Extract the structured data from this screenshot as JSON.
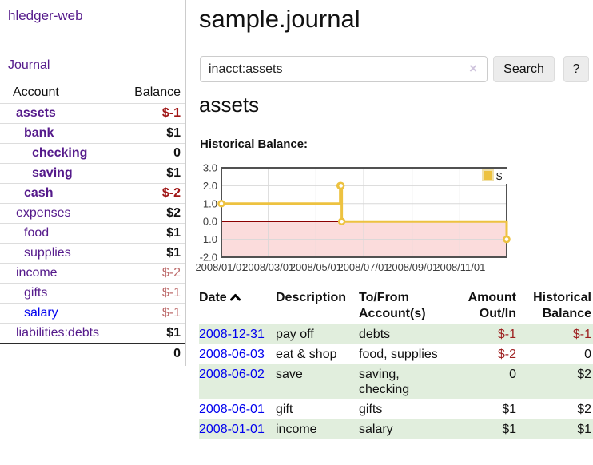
{
  "app": {
    "brand": "hledger-web",
    "nav_journal": "Journal"
  },
  "sidebar": {
    "header": {
      "account": "Account",
      "balance": "Balance"
    },
    "rows": [
      {
        "name": "assets",
        "depth": 1,
        "bold": true,
        "balance": "$-1",
        "neg": "strong"
      },
      {
        "name": "bank",
        "depth": 2,
        "bold": true,
        "balance": "$1"
      },
      {
        "name": "checking",
        "depth": 3,
        "bold": true,
        "balance": "0"
      },
      {
        "name": "saving",
        "depth": 3,
        "bold": true,
        "balance": "$1"
      },
      {
        "name": "cash",
        "depth": 2,
        "bold": true,
        "balance": "$-2",
        "neg": "strong"
      },
      {
        "name": "expenses",
        "depth": 1,
        "bold": false,
        "balance": "$2"
      },
      {
        "name": "food",
        "depth": 2,
        "bold": false,
        "balance": "$1"
      },
      {
        "name": "supplies",
        "depth": 2,
        "bold": false,
        "balance": "$1"
      },
      {
        "name": "income",
        "depth": 1,
        "bold": false,
        "balance": "$-2",
        "neg": "soft"
      },
      {
        "name": "gifts",
        "depth": 2,
        "bold": false,
        "balance": "$-1",
        "neg": "soft"
      },
      {
        "name": "salary",
        "depth": 2,
        "bold": false,
        "balance": "$-1",
        "neg": "soft",
        "link_color": "blue"
      },
      {
        "name": "liabilities:debts",
        "depth": 1,
        "bold": false,
        "balance": "$1"
      }
    ],
    "total": "0"
  },
  "main": {
    "title": "sample.journal",
    "search": {
      "value": "inacct:assets",
      "clear_icon": "×",
      "button": "Search",
      "help_button": "?"
    },
    "account_heading": "assets",
    "chart_label": "Historical Balance:"
  },
  "chart_data": {
    "type": "line",
    "step": true,
    "title": "Historical Balance of assets",
    "series": [
      {
        "name": "$",
        "color": "#edc240",
        "points": [
          [
            "2008-01-01",
            1
          ],
          [
            "2008-06-01",
            2
          ],
          [
            "2008-06-02",
            2
          ],
          [
            "2008-06-03",
            0
          ],
          [
            "2008-12-31",
            -1
          ]
        ]
      }
    ],
    "xlim": [
      "2008-01-01",
      "2008-12-31"
    ],
    "ylim": [
      -2,
      3
    ],
    "x_ticks": [
      {
        "date": "2008-01-01",
        "label": "2008/01/01"
      },
      {
        "date": "2008-03-01",
        "label": "2008/03/01"
      },
      {
        "date": "2008-05-01",
        "label": "2008/05/01"
      },
      {
        "date": "2008-07-01",
        "label": "2008/07/01"
      },
      {
        "date": "2008-09-01",
        "label": "2008/09/01"
      },
      {
        "date": "2008-11-01",
        "label": "2008/11/01"
      }
    ],
    "y_ticks": [
      {
        "v": 3,
        "label": "3.0"
      },
      {
        "v": 2,
        "label": "2.0"
      },
      {
        "v": 1,
        "label": "1.0"
      },
      {
        "v": 0,
        "label": "0.0"
      },
      {
        "v": -1,
        "label": "-1.0"
      },
      {
        "v": -2,
        "label": "-2.0"
      }
    ],
    "legend": {
      "position": "top-right",
      "label": "$"
    },
    "grid": true,
    "negative_region_color": "#fbdcdc",
    "zero_line_color": "#8b0000",
    "border_color": "#515151",
    "gridline_color": "#d8d8d8"
  },
  "register": {
    "columns": [
      {
        "label": "Date",
        "sorted": "asc"
      },
      {
        "label": "Description"
      },
      {
        "label": "To/From Account(s)"
      },
      {
        "label": "Amount Out/In",
        "align": "right"
      },
      {
        "label": "Historical Balance",
        "align": "right"
      }
    ],
    "rows": [
      {
        "date": "2008-12-31",
        "description": "pay off",
        "accounts": "debts",
        "amount": "$-1",
        "amount_neg": true,
        "balance": "$-1",
        "balance_neg": true
      },
      {
        "date": "2008-06-03",
        "description": "eat & shop",
        "accounts": "food, supplies",
        "amount": "$-2",
        "amount_neg": true,
        "balance": "0",
        "balance_neg": false
      },
      {
        "date": "2008-06-02",
        "description": "save",
        "accounts": "saving, checking",
        "amount": "0",
        "amount_neg": false,
        "balance": "$2",
        "balance_neg": false
      },
      {
        "date": "2008-06-01",
        "description": "gift",
        "accounts": "gifts",
        "amount": "$1",
        "amount_neg": false,
        "balance": "$2",
        "balance_neg": false
      },
      {
        "date": "2008-01-01",
        "description": "income",
        "accounts": "salary",
        "amount": "$1",
        "amount_neg": false,
        "balance": "$1",
        "balance_neg": false
      }
    ]
  }
}
